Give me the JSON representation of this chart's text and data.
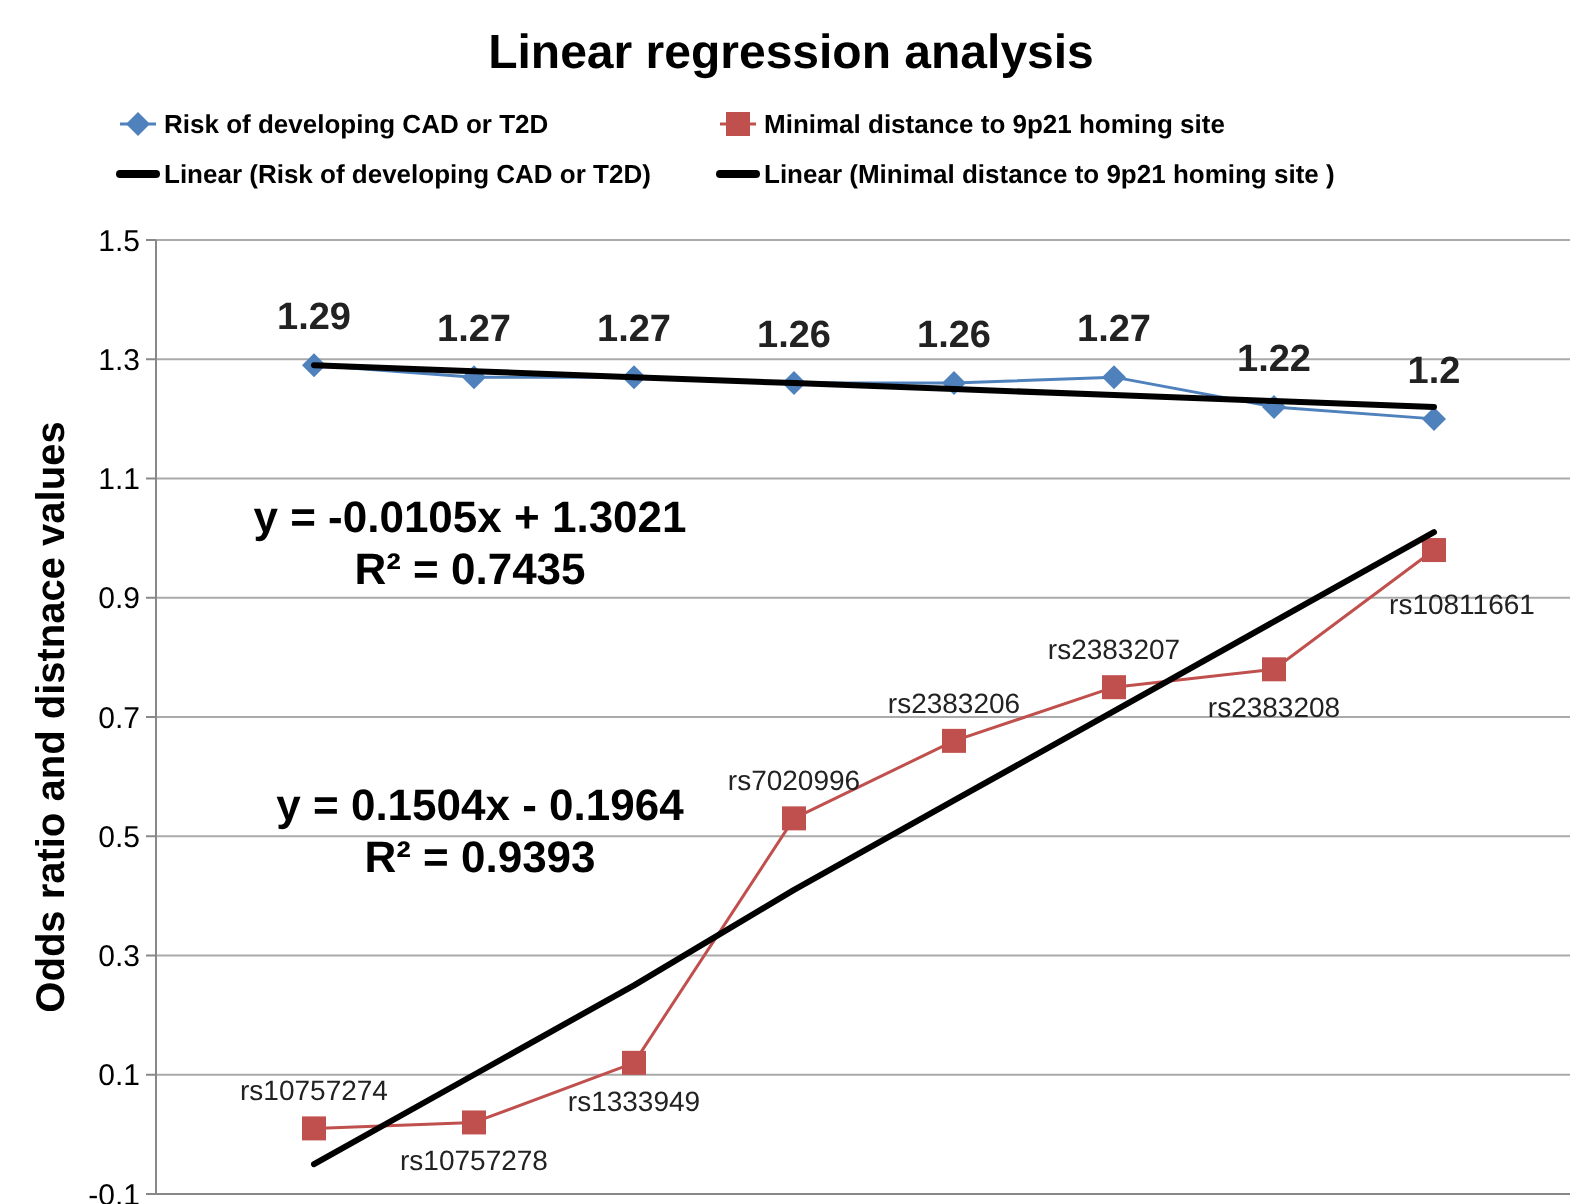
{
  "chart_data": {
    "type": "line",
    "title": "Linear regression analysis",
    "ylabel": "Odds ratio and distnace values",
    "categories": [
      null,
      null,
      null,
      null,
      null,
      null,
      null,
      null
    ],
    "ylim": [
      -0.1,
      1.5
    ],
    "yticks": [
      -0.1,
      0.1,
      0.3,
      0.5,
      0.7,
      0.9,
      1.1,
      1.3,
      1.5
    ],
    "grid": "y",
    "legend": "top",
    "series": [
      {
        "name": "Risk of developing CAD or T2D",
        "color": "#4f81bd",
        "marker": "diamond",
        "values": [
          1.29,
          1.27,
          1.27,
          1.26,
          1.26,
          1.27,
          1.22,
          1.2
        ],
        "value_labels": [
          "1.29",
          "1.27",
          "1.27",
          "1.26",
          "1.26",
          "1.27",
          "1.22",
          "1.2"
        ]
      },
      {
        "name": "Minimal distance to 9p21 homing site",
        "color": "#c0504d",
        "marker": "square",
        "values": [
          0.01,
          0.02,
          0.12,
          0.53,
          0.66,
          0.75,
          0.78,
          0.98
        ],
        "value_labels": [
          "rs10757274",
          "rs10757278",
          "rs1333949",
          "rs7020996",
          "rs2383206",
          "rs2383207",
          "rs2383208",
          "rs10811661"
        ]
      },
      {
        "name": "Linear (Risk of developing CAD or T2D)",
        "color": "#000000",
        "marker": "none",
        "values": [
          1.29,
          1.28,
          1.27,
          1.26,
          1.25,
          1.24,
          1.23,
          1.22
        ]
      },
      {
        "name": "Linear (Minimal distance to 9p21 homing site )",
        "color": "#000000",
        "marker": "none",
        "values": [
          -0.05,
          0.1,
          0.25,
          0.41,
          0.56,
          0.71,
          0.86,
          1.01
        ]
      }
    ],
    "annotations": [
      "y = -0.0105x + 1.3021",
      "R² = 0.7435",
      "y = 0.1504x - 0.1964",
      "R² = 0.9393"
    ]
  }
}
